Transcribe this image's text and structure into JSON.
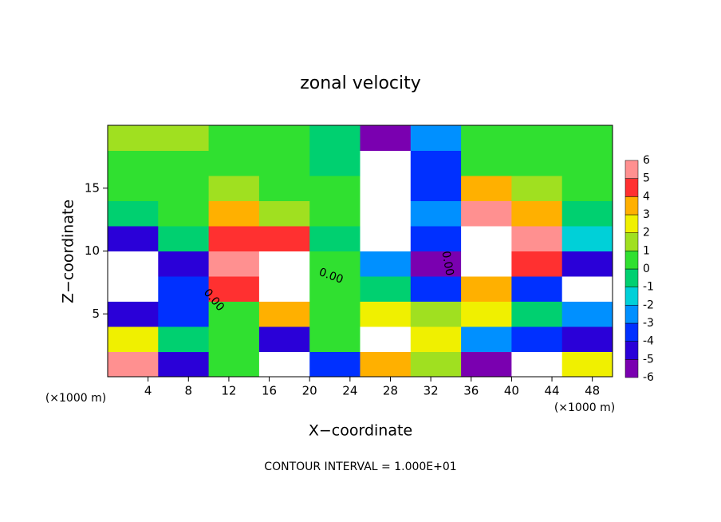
{
  "chart_data": {
    "type": "heatmap",
    "title": "zonal velocity",
    "xlabel": "X−coordinate",
    "ylabel": "Z−coordinate",
    "x_unit_label": "(×1000 m)",
    "y_unit_label": "(×1000 m)",
    "footer": "CONTOUR INTERVAL = 1.000E+01",
    "annotations": [
      "0.00",
      "0.00",
      "0.00"
    ],
    "xlim": [
      0,
      50
    ],
    "ylim": [
      0,
      20
    ],
    "xticks": [
      4,
      8,
      12,
      16,
      20,
      24,
      28,
      32,
      36,
      40,
      44,
      48
    ],
    "yticks": [
      5,
      10,
      15
    ],
    "x_edges": [
      0,
      5,
      10,
      15,
      20,
      25,
      30,
      35,
      40,
      45,
      50
    ],
    "z_edges": [
      0,
      2,
      4,
      6,
      8,
      10,
      12,
      14,
      16,
      18,
      20
    ],
    "values": [
      [
        6,
        -4,
        1,
        -8,
        -3,
        4,
        2,
        -6,
        -8,
        3
      ],
      [
        3,
        0,
        1,
        -4,
        1,
        8,
        3,
        -2,
        -3,
        -4
      ],
      [
        -4,
        -3,
        1,
        4,
        1,
        3,
        2,
        3,
        0,
        -2
      ],
      [
        -8,
        -3,
        5,
        8,
        1,
        0,
        -3,
        4,
        -3,
        -8
      ],
      [
        -8,
        -4,
        6,
        8,
        1,
        -2,
        -5,
        8,
        5,
        -4
      ],
      [
        -4,
        0,
        5,
        5,
        0,
        -8,
        -3,
        8,
        6,
        -1
      ],
      [
        0,
        1,
        4,
        2,
        1,
        -8,
        -2,
        6,
        4,
        0
      ],
      [
        1,
        1,
        2,
        1,
        1,
        -8,
        -3,
        4,
        2,
        1
      ],
      [
        1,
        1,
        1,
        1,
        0,
        -8,
        -3,
        1,
        1,
        1
      ],
      [
        2,
        2,
        1,
        1,
        0,
        -6,
        -2,
        1,
        1,
        1
      ]
    ],
    "colorbar_ticks": [
      -6,
      -5,
      -4,
      -3,
      -2,
      -1,
      0,
      1,
      2,
      3,
      4,
      5,
      6
    ],
    "colorbar_colors": [
      "#7a00b0",
      "#2a00d8",
      "#0030ff",
      "#0090ff",
      "#00d0d8",
      "#00d070",
      "#30e030",
      "#a0e020",
      "#f0f000",
      "#ffb000",
      "#ff3030",
      "#ff9090"
    ]
  }
}
